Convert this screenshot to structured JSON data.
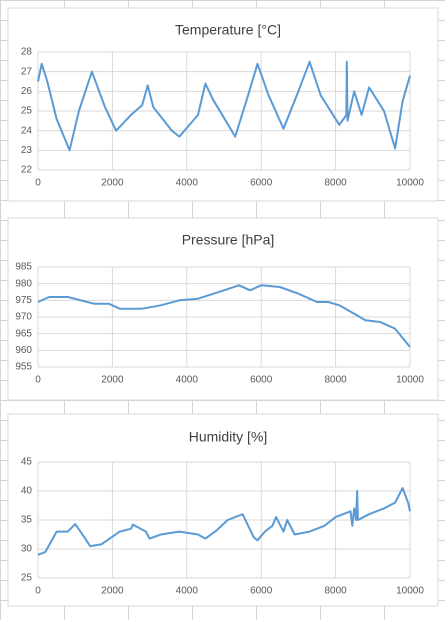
{
  "chart_data": [
    {
      "type": "line",
      "title": "Temperature [°C]",
      "series": [
        {
          "name": "Temperature",
          "color": "#5b9bd5",
          "x": [
            0,
            100,
            250,
            500,
            850,
            1100,
            1450,
            1800,
            2100,
            2500,
            2800,
            2950,
            3100,
            3600,
            3800,
            4300,
            4500,
            4700,
            5300,
            5600,
            5900,
            6200,
            6600,
            7000,
            7300,
            7600,
            8100,
            8290,
            8300,
            8320,
            8500,
            8700,
            8900,
            9300,
            9600,
            9800,
            10000
          ],
          "values": [
            26.5,
            27.4,
            26.5,
            24.6,
            23,
            25,
            27,
            25.2,
            24,
            24.8,
            25.3,
            26.3,
            25.2,
            24,
            23.7,
            24.8,
            26.4,
            25.6,
            23.7,
            25.5,
            27.4,
            25.8,
            24.1,
            26,
            27.5,
            25.8,
            24.3,
            24.8,
            27.5,
            24.5,
            26,
            24.8,
            26.2,
            25,
            23.1,
            25.5,
            26.8
          ]
        }
      ],
      "xlim": [
        0,
        10000
      ],
      "xticks": [
        0,
        2000,
        4000,
        6000,
        8000,
        10000
      ],
      "ylim": [
        22,
        28
      ],
      "yticks": [
        22,
        23,
        24,
        25,
        26,
        27,
        28
      ],
      "grid": true
    },
    {
      "type": "line",
      "title": "Pressure [hPa]",
      "series": [
        {
          "name": "Pressure",
          "color": "#5b9bd5",
          "x": [
            0,
            300,
            800,
            1500,
            1900,
            2200,
            2800,
            3300,
            3800,
            4300,
            5000,
            5400,
            5700,
            6000,
            6500,
            7000,
            7500,
            7800,
            8100,
            8500,
            8800,
            9200,
            9600,
            10000
          ],
          "values": [
            974.5,
            976,
            976,
            974,
            974,
            972.5,
            972.5,
            973.5,
            975,
            975.5,
            978,
            979.5,
            978,
            979.5,
            979,
            977,
            974.5,
            974.5,
            973.5,
            971,
            969,
            968.5,
            966.5,
            961
          ]
        }
      ],
      "xlim": [
        0,
        10000
      ],
      "xticks": [
        0,
        2000,
        4000,
        6000,
        8000,
        10000
      ],
      "ylim": [
        955,
        985
      ],
      "yticks": [
        955,
        960,
        965,
        970,
        975,
        980,
        985
      ],
      "grid": true
    },
    {
      "type": "line",
      "title": "Humidity [%]",
      "series": [
        {
          "name": "Humidity",
          "color": "#5b9bd5",
          "x": [
            0,
            200,
            500,
            800,
            1000,
            1250,
            1400,
            1700,
            2200,
            2500,
            2550,
            2900,
            3000,
            3300,
            3800,
            4300,
            4500,
            4800,
            5100,
            5500,
            5800,
            5900,
            6100,
            6300,
            6400,
            6600,
            6700,
            6900,
            7300,
            7700,
            8000,
            8400,
            8450,
            8500,
            8550,
            8580,
            8600,
            8900,
            9300,
            9600,
            9800,
            9950,
            10000
          ],
          "values": [
            29,
            29.5,
            33,
            33,
            34.3,
            32,
            30.5,
            30.8,
            33,
            33.5,
            34.2,
            33,
            31.8,
            32.5,
            33,
            32.5,
            31.8,
            33.2,
            35,
            36,
            32,
            31.5,
            33,
            34,
            35.5,
            33,
            35,
            32.5,
            33,
            34,
            35.5,
            36.5,
            34,
            37,
            35,
            40,
            35,
            36,
            37,
            38,
            40.5,
            38,
            36.5
          ]
        }
      ],
      "xlim": [
        0,
        10000
      ],
      "xticks": [
        0,
        2000,
        4000,
        6000,
        8000,
        10000
      ],
      "ylim": [
        25,
        45
      ],
      "yticks": [
        25,
        30,
        35,
        40,
        45
      ],
      "grid": true
    }
  ]
}
